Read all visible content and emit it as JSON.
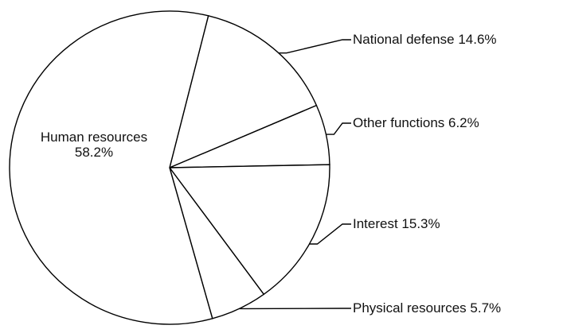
{
  "chart_data": {
    "type": "pie",
    "slices": [
      {
        "label": "National defense 14.6%",
        "name": "National defense",
        "value": 14.6
      },
      {
        "label": "Other functions 6.2%",
        "name": "Other functions",
        "value": 6.2
      },
      {
        "label": "Interest 15.3%",
        "name": "Interest",
        "value": 15.3
      },
      {
        "label": "Physical resources 5.7%",
        "name": "Physical resources",
        "value": 5.7
      },
      {
        "label_lines": [
          "Human resources",
          "58.2%"
        ],
        "name": "Human resources",
        "value": 58.2
      }
    ],
    "legend": "none",
    "labels": "external with leader lines; largest slice labeled inside",
    "colors": {
      "fill": "#ffffff",
      "stroke": "#000000",
      "text": "#111111"
    }
  }
}
